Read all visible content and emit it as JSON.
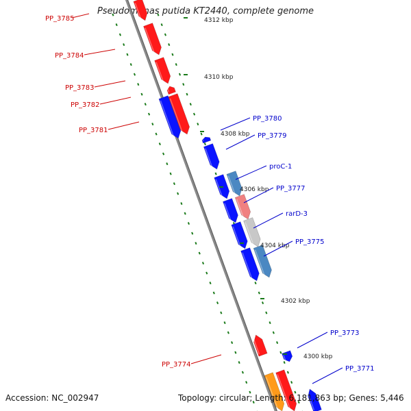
{
  "title": "Pseudomonas putida KT2440, complete genome",
  "footer": {
    "accession": "Accession: NC_002947",
    "summary": "Topology: circular; Length: 6,181,863 bp; Genes: 5,446"
  },
  "colors": {
    "forward": "#ff1a1a",
    "reverse": "#0a14ff",
    "steelblue": "#4b88c2",
    "pink": "#f08080",
    "gray": "#c8c8c8",
    "orange": "#ff9a1a",
    "tick": "#1a7a1a",
    "backbone": "#8a8a8a",
    "label_red": "#cc0000",
    "label_blue": "#0000cc"
  },
  "ticks": [
    {
      "label": "4312 kbp"
    },
    {
      "label": "4310 kbp"
    },
    {
      "label": "4308 kbp"
    },
    {
      "label": "4306 kbp"
    },
    {
      "label": "4304 kbp"
    },
    {
      "label": "4302 kbp"
    },
    {
      "label": "4300 kbp"
    }
  ],
  "genes": [
    {
      "label": "PP_3785",
      "strand": "-"
    },
    {
      "label": "PP_3784",
      "strand": "-"
    },
    {
      "label": "PP_3783",
      "strand": "-"
    },
    {
      "label": "PP_3782",
      "strand": "-"
    },
    {
      "label": "PP_3781",
      "strand": "-"
    },
    {
      "label": "PP_3780",
      "strand": "+"
    },
    {
      "label": "PP_3779",
      "strand": "+"
    },
    {
      "label": "proC-1",
      "strand": "+"
    },
    {
      "label": "PP_3777",
      "strand": "+"
    },
    {
      "label": "rarD-3",
      "strand": "+"
    },
    {
      "label": "PP_3775",
      "strand": "+"
    },
    {
      "label": "PP_3774",
      "strand": "-"
    },
    {
      "label": "PP_3773",
      "strand": "+"
    },
    {
      "label": "PP_3771",
      "strand": "+"
    }
  ]
}
